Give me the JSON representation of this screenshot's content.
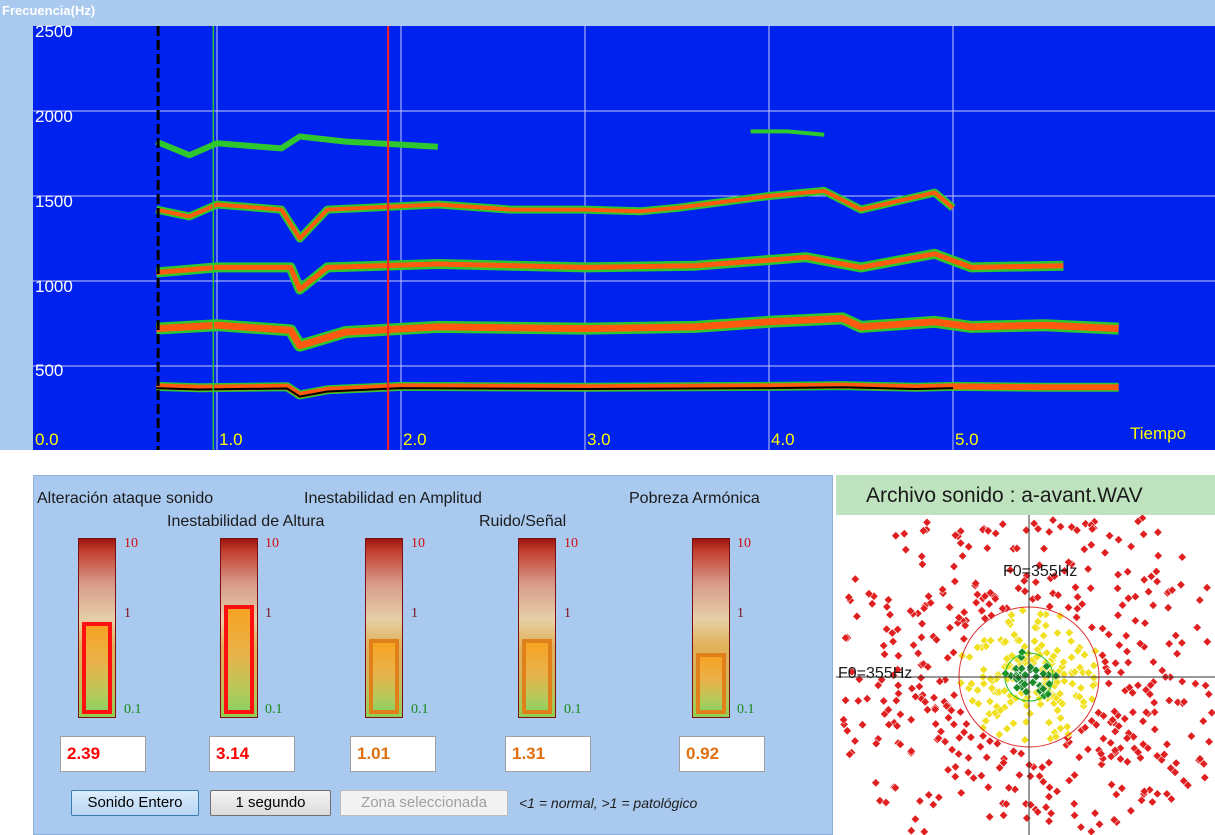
{
  "spectrogram": {
    "title": "Frecuencia(Hz)",
    "y_labels": [
      "2500",
      "2000",
      "1500",
      "1000",
      "500"
    ],
    "x_labels": [
      "0.0",
      "1.0",
      "2.0",
      "3.0",
      "4.0",
      "5.0"
    ],
    "x_unit_label": "Tiempo",
    "colors": {
      "background": "#0022ee",
      "grid": "#c8c8ff"
    }
  },
  "meters": [
    {
      "title": "Alteración ataque sonido",
      "value": "2.39",
      "level_percent": 54,
      "value_color": "#ff0000",
      "bar_color": "#ff1010",
      "max": "10",
      "mid": "1",
      "min": "0.1"
    },
    {
      "title": "Inestabilidad de Altura",
      "value": "3.14",
      "level_percent": 64,
      "value_color": "#ff0000",
      "bar_color": "#ff1010",
      "max": "10",
      "mid": "1",
      "min": "0.1"
    },
    {
      "title": "Inestabilidad en Amplitud",
      "value": "1.01",
      "level_percent": 44,
      "value_color": "#e07010",
      "bar_color": "#e0801a",
      "max": "10",
      "mid": "1",
      "min": "0.1"
    },
    {
      "title": "Ruido/Señal",
      "value": "1.31",
      "level_percent": 44,
      "value_color": "#e07010",
      "bar_color": "#e0801a",
      "max": "10",
      "mid": "1",
      "min": "0.1"
    },
    {
      "title": "Pobreza Armónica",
      "value": "0.92",
      "level_percent": 36,
      "value_color": "#e07010",
      "bar_color": "#e0801a",
      "max": "10",
      "mid": "1",
      "min": "0.1"
    }
  ],
  "buttons": {
    "whole": "Sonido Entero",
    "one_second": "1 segundo",
    "selection": "Zona seleccionada"
  },
  "legend_note": "<1 = normal, >1 = patológico",
  "sound_file": {
    "label": "Archivo sonido : a-avant.WAV"
  },
  "polar": {
    "f0_top": "F0=355Hz",
    "f0_left": "F0=355Hz",
    "colors": {
      "outer": "#e02020",
      "middle": "#f0e020",
      "inner": "#1a8a2a"
    }
  }
}
